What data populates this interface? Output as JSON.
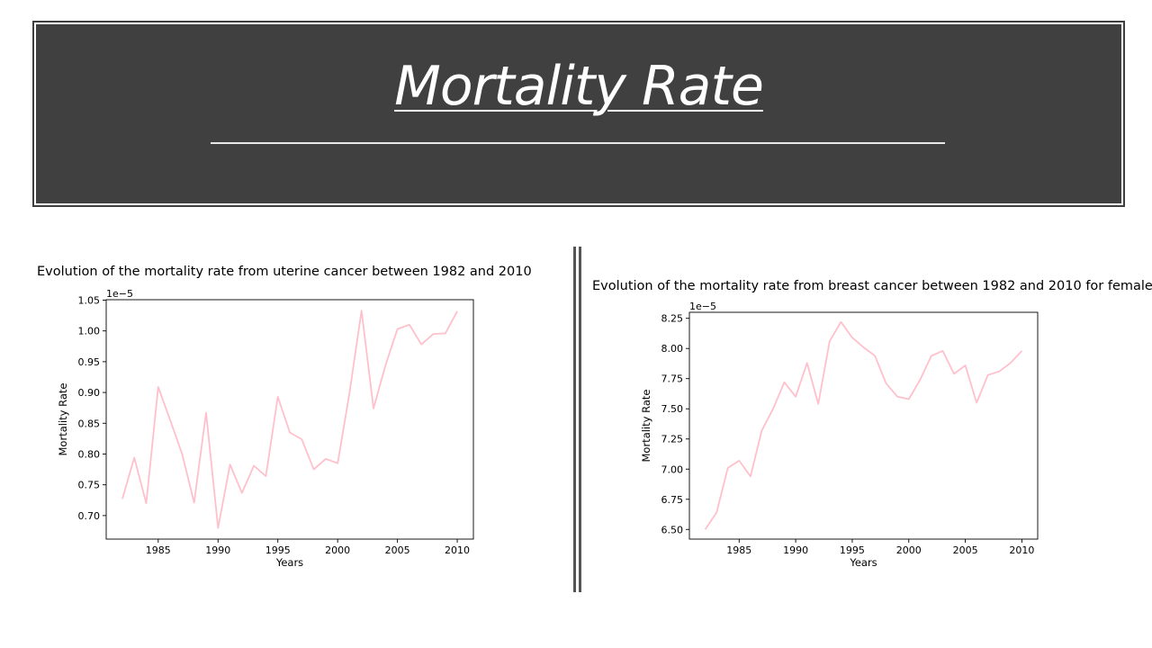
{
  "slide": {
    "title": "Mortality Rate"
  },
  "chart_data": [
    {
      "type": "line",
      "title": "Evolution of the mortality rate from uterine cancer between 1982 and 2010",
      "xlabel": "Years",
      "ylabel": "Mortality Rate",
      "y_offset_label": "1e−5",
      "xlim": [
        1980.65,
        2011.35
      ],
      "ylim": [
        0.6618,
        1.0507
      ],
      "x_ticks": [
        1985,
        1990,
        1995,
        2000,
        2005,
        2010
      ],
      "y_ticks": [
        0.7,
        0.75,
        0.8,
        0.85,
        0.9,
        0.95,
        1.0,
        1.05
      ],
      "y_tick_labels": [
        "0.70",
        "0.75",
        "0.80",
        "0.85",
        "0.90",
        "0.95",
        "1.00",
        "1.05"
      ],
      "grid": false,
      "line_color": "#ffc0cb",
      "series": [
        {
          "x": [
            1982,
            1983,
            1984,
            1985,
            1986,
            1987,
            1988,
            1989,
            1990,
            1991,
            1992,
            1993,
            1994,
            1995,
            1996,
            1997,
            1998,
            1999,
            2000,
            2001,
            2002,
            2003,
            2004,
            2005,
            2006,
            2007,
            2008,
            2009,
            2010
          ],
          "values": [
            0.727,
            0.794,
            0.72,
            0.909,
            0.855,
            0.8,
            0.721,
            0.867,
            0.68,
            0.783,
            0.737,
            0.781,
            0.764,
            0.893,
            0.835,
            0.824,
            0.775,
            0.792,
            0.785,
            0.9,
            1.033,
            0.874,
            0.944,
            1.003,
            1.01,
            0.978,
            0.995,
            0.996,
            1.032
          ]
        }
      ]
    },
    {
      "type": "line",
      "title": "Evolution of the mortality rate from breast cancer between 1982 and 2010 for female",
      "xlabel": "Years",
      "ylabel": "Mortality Rate",
      "y_offset_label": "1e−5",
      "xlim": [
        1980.6,
        2011.4
      ],
      "ylim": [
        6.42,
        8.3
      ],
      "x_ticks": [
        1985,
        1990,
        1995,
        2000,
        2005,
        2010
      ],
      "y_ticks": [
        6.5,
        6.75,
        7.0,
        7.25,
        7.5,
        7.75,
        8.0,
        8.25
      ],
      "y_tick_labels": [
        "6.50",
        "6.75",
        "7.00",
        "7.25",
        "7.50",
        "7.75",
        "8.00",
        "8.25"
      ],
      "grid": false,
      "line_color": "#ffc0cb",
      "series": [
        {
          "x": [
            1982,
            1983,
            1984,
            1985,
            1986,
            1987,
            1988,
            1989,
            1990,
            1991,
            1992,
            1993,
            1994,
            1995,
            1996,
            1997,
            1998,
            1999,
            2000,
            2001,
            2002,
            2003,
            2004,
            2005,
            2006,
            2007,
            2008,
            2009,
            2010
          ],
          "values": [
            6.5,
            6.64,
            7.01,
            7.07,
            6.94,
            7.32,
            7.5,
            7.72,
            7.6,
            7.88,
            7.54,
            8.06,
            8.22,
            8.09,
            8.01,
            7.94,
            7.71,
            7.6,
            7.58,
            7.74,
            7.94,
            7.98,
            7.79,
            7.86,
            7.55,
            7.78,
            7.81,
            7.88,
            7.98
          ]
        }
      ]
    }
  ]
}
